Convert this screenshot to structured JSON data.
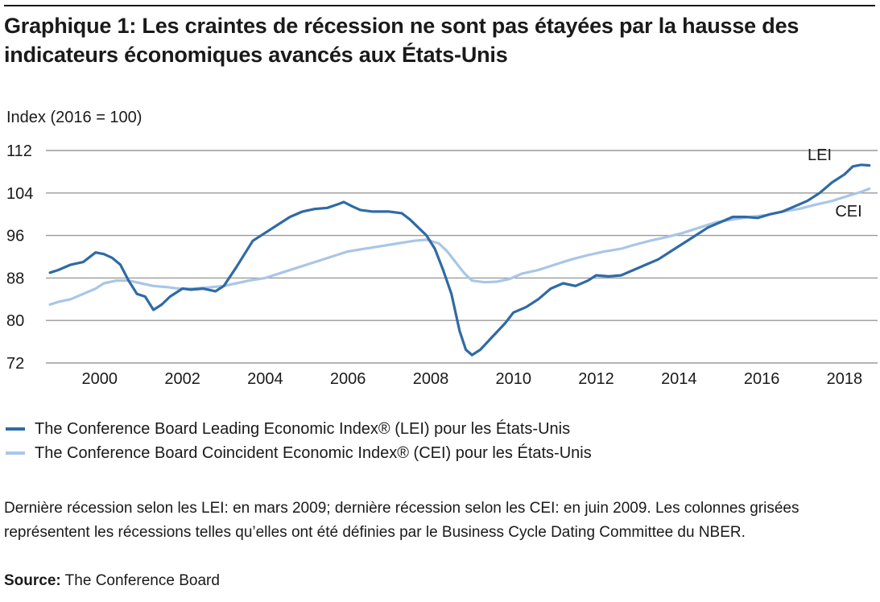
{
  "header": {
    "title_line1": "Graphique 1: Les craintes de récession ne sont pas étayées par la hausse des",
    "title_line2": "indicateurs économiques avancés aux États-Unis"
  },
  "colors": {
    "lei": "#2f6aa6",
    "cei": "#a9c6e6",
    "grid": "#9a9a9a",
    "text": "#1a1a1a"
  },
  "chart_data": {
    "type": "line",
    "ylabel": "Index (2016 = 100)",
    "ylim": [
      72,
      112
    ],
    "yticks": [
      72,
      80,
      88,
      96,
      104,
      112
    ],
    "xlim": [
      1998.7,
      2018.8
    ],
    "xticks": [
      2000,
      2002,
      2004,
      2006,
      2008,
      2010,
      2012,
      2014,
      2016,
      2018
    ],
    "grid": true,
    "series": [
      {
        "name": "LEI",
        "label": "LEI",
        "x": [
          1998.8,
          1999.0,
          1999.3,
          1999.6,
          1999.9,
          2000.1,
          2000.3,
          2000.5,
          2000.7,
          2000.9,
          2001.1,
          2001.3,
          2001.5,
          2001.7,
          2001.9,
          2002.0,
          2002.2,
          2002.5,
          2002.8,
          2003.0,
          2003.3,
          2003.5,
          2003.7,
          2004.0,
          2004.3,
          2004.6,
          2004.9,
          2005.2,
          2005.5,
          2005.8,
          2005.9,
          2006.1,
          2006.3,
          2006.6,
          2007.0,
          2007.3,
          2007.5,
          2007.7,
          2007.9,
          2008.1,
          2008.3,
          2008.5,
          2008.7,
          2008.85,
          2009.0,
          2009.2,
          2009.5,
          2009.8,
          2010.0,
          2010.3,
          2010.6,
          2010.9,
          2011.2,
          2011.5,
          2011.8,
          2012.0,
          2012.3,
          2012.6,
          2012.9,
          2013.2,
          2013.5,
          2013.8,
          2014.1,
          2014.4,
          2014.7,
          2015.0,
          2015.3,
          2015.6,
          2015.9,
          2016.2,
          2016.5,
          2016.8,
          2017.1,
          2017.4,
          2017.7,
          2018.0,
          2018.2,
          2018.4,
          2018.6
        ],
        "values": [
          89.0,
          89.5,
          90.5,
          91.0,
          92.8,
          92.5,
          91.8,
          90.5,
          87.5,
          85.0,
          84.5,
          82.0,
          83.0,
          84.5,
          85.5,
          86.0,
          85.8,
          86.0,
          85.5,
          86.5,
          90.0,
          92.5,
          95.0,
          96.5,
          98.0,
          99.5,
          100.5,
          101.0,
          101.2,
          102.0,
          102.3,
          101.5,
          100.8,
          100.5,
          100.5,
          100.2,
          99.0,
          97.5,
          96.0,
          93.5,
          89.5,
          85.0,
          78.0,
          74.5,
          73.5,
          74.5,
          77.0,
          79.5,
          81.5,
          82.5,
          84.0,
          86.0,
          87.0,
          86.5,
          87.5,
          88.5,
          88.3,
          88.5,
          89.5,
          90.5,
          91.5,
          93.0,
          94.5,
          96.0,
          97.5,
          98.5,
          99.5,
          99.5,
          99.3,
          100.0,
          100.5,
          101.5,
          102.5,
          104.0,
          106.0,
          107.5,
          109.0,
          109.3,
          109.2
        ]
      },
      {
        "name": "CEI",
        "label": "CEI",
        "x": [
          1998.8,
          1999.0,
          1999.3,
          1999.6,
          1999.9,
          2000.1,
          2000.4,
          2000.7,
          2001.0,
          2001.3,
          2001.6,
          2001.9,
          2002.2,
          2002.6,
          2003.0,
          2003.3,
          2003.6,
          2004.0,
          2004.4,
          2004.8,
          2005.2,
          2005.6,
          2006.0,
          2006.4,
          2006.8,
          2007.2,
          2007.6,
          2007.9,
          2008.2,
          2008.4,
          2008.6,
          2008.8,
          2009.0,
          2009.3,
          2009.6,
          2009.9,
          2010.2,
          2010.6,
          2011.0,
          2011.4,
          2011.8,
          2012.2,
          2012.6,
          2012.9,
          2013.3,
          2013.7,
          2014.1,
          2014.5,
          2014.9,
          2015.3,
          2015.7,
          2016.1,
          2016.5,
          2016.9,
          2017.3,
          2017.7,
          2018.1,
          2018.4,
          2018.6
        ],
        "values": [
          83.0,
          83.5,
          84.0,
          85.0,
          86.0,
          87.0,
          87.5,
          87.5,
          87.0,
          86.5,
          86.3,
          86.0,
          86.0,
          86.2,
          86.5,
          87.0,
          87.5,
          88.0,
          89.0,
          90.0,
          91.0,
          92.0,
          93.0,
          93.5,
          94.0,
          94.5,
          95.0,
          95.2,
          94.5,
          93.0,
          91.0,
          89.0,
          87.5,
          87.2,
          87.3,
          87.8,
          88.8,
          89.5,
          90.5,
          91.5,
          92.3,
          93.0,
          93.5,
          94.2,
          95.0,
          95.7,
          96.5,
          97.5,
          98.5,
          99.0,
          99.5,
          99.8,
          100.5,
          101.0,
          101.8,
          102.5,
          103.5,
          104.2,
          104.8
        ]
      }
    ],
    "legend": [
      "The Conference Board Leading Economic Index® (LEI) pour les États-Unis",
      "The Conference Board Coincident Economic Index® (CEI) pour les États-Unis"
    ]
  },
  "footnote": "Dernière récession selon les LEI: en mars 2009; dernière récession selon les CEI: en juin 2009. Les colonnes grisées représentent les récessions telles qu’elles ont été définies par le Business Cycle Dating Committee du NBER.",
  "source": {
    "label": "Source:",
    "text": " The Conference Board"
  }
}
